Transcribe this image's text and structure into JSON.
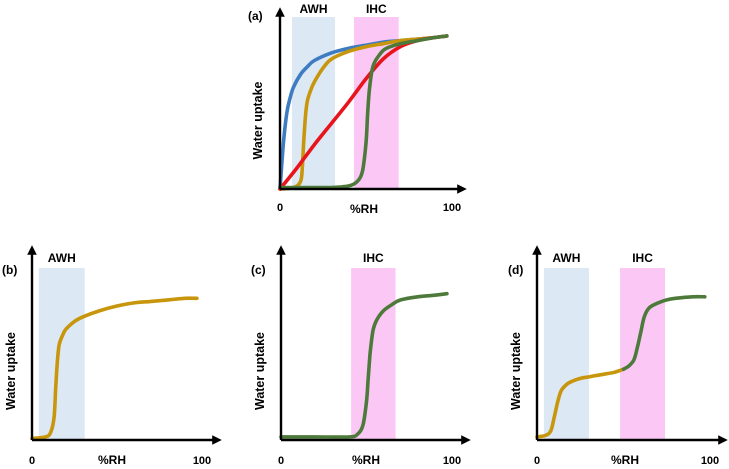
{
  "chart_data": [
    {
      "type": "line",
      "panel_label": "(a)",
      "xlabel": "%RH",
      "ylabel": "Water uptake",
      "xlim": [
        0,
        100
      ],
      "ylim": [
        0,
        1
      ],
      "x_ticks": [
        "0",
        "100"
      ],
      "bands": [
        {
          "label": "AWH",
          "range": [
            7,
            32
          ],
          "color": "#dce8f4"
        },
        {
          "label": "IHC",
          "range": [
            43,
            69
          ],
          "color": "#fbc8f6"
        }
      ],
      "series": [
        {
          "name": "blue",
          "color": "#3e7cc2",
          "x": [
            0,
            2,
            4,
            6,
            8,
            12,
            16,
            20,
            30,
            40,
            50,
            60,
            70,
            80,
            90,
            97
          ],
          "y": [
            0,
            0.3,
            0.5,
            0.6,
            0.67,
            0.75,
            0.8,
            0.84,
            0.89,
            0.92,
            0.94,
            0.96,
            0.97,
            0.98,
            0.99,
            1.0
          ]
        },
        {
          "name": "gold",
          "color": "#c8960c",
          "x": [
            0,
            8,
            12,
            13,
            14,
            15,
            16,
            18,
            20,
            25,
            30,
            40,
            50,
            60,
            70,
            80,
            90,
            97
          ],
          "y": [
            0,
            0.01,
            0.05,
            0.15,
            0.35,
            0.5,
            0.58,
            0.65,
            0.7,
            0.79,
            0.85,
            0.9,
            0.93,
            0.95,
            0.97,
            0.98,
            0.99,
            1.0
          ]
        },
        {
          "name": "red",
          "color": "#e8141c",
          "x": [
            0,
            10,
            20,
            30,
            40,
            50,
            60,
            70,
            80,
            90,
            97
          ],
          "y": [
            0,
            0.14,
            0.29,
            0.43,
            0.57,
            0.72,
            0.85,
            0.93,
            0.97,
            0.99,
            1.0
          ]
        },
        {
          "name": "green",
          "color": "#4d7a3a",
          "x": [
            0,
            15,
            30,
            40,
            45,
            48,
            50,
            51,
            52,
            54,
            58,
            62,
            70,
            80,
            90,
            97
          ],
          "y": [
            0.01,
            0.01,
            0.01,
            0.02,
            0.05,
            0.12,
            0.3,
            0.5,
            0.65,
            0.8,
            0.88,
            0.92,
            0.95,
            0.97,
            0.99,
            1.0
          ]
        }
      ]
    },
    {
      "type": "line",
      "panel_label": "(b)",
      "xlabel": "%RH",
      "ylabel": "Water uptake",
      "xlim": [
        0,
        100
      ],
      "ylim": [
        0,
        1
      ],
      "x_ticks": [
        "0",
        "100"
      ],
      "bands": [
        {
          "label": "AWH",
          "range": [
            4,
            31
          ],
          "color": "#dce8f4"
        }
      ],
      "series": [
        {
          "name": "gold",
          "color": "#c8960c",
          "x": [
            0,
            8,
            11,
            13,
            14,
            15,
            16,
            18,
            20,
            25,
            30,
            40,
            50,
            60,
            70,
            80,
            90,
            97
          ],
          "y": [
            0.01,
            0.02,
            0.05,
            0.15,
            0.35,
            0.52,
            0.62,
            0.68,
            0.72,
            0.77,
            0.8,
            0.84,
            0.87,
            0.89,
            0.9,
            0.91,
            0.92,
            0.92
          ]
        }
      ]
    },
    {
      "type": "line",
      "panel_label": "(c)",
      "xlabel": "%RH",
      "ylabel": "Water uptake",
      "xlim": [
        0,
        100
      ],
      "ylim": [
        0,
        1
      ],
      "x_ticks": [
        "0",
        "100"
      ],
      "bands": [
        {
          "label": "IHC",
          "range": [
            41,
            67
          ],
          "color": "#fbc8f6"
        }
      ],
      "series": [
        {
          "name": "green",
          "color": "#4d7a3a",
          "x": [
            0,
            20,
            40,
            45,
            48,
            50,
            51,
            52,
            53,
            54,
            56,
            60,
            65,
            70,
            80,
            90,
            97
          ],
          "y": [
            0.02,
            0.02,
            0.02,
            0.04,
            0.1,
            0.25,
            0.4,
            0.55,
            0.65,
            0.72,
            0.78,
            0.84,
            0.88,
            0.91,
            0.93,
            0.94,
            0.95
          ]
        }
      ]
    },
    {
      "type": "line",
      "panel_label": "(d)",
      "xlabel": "%RH",
      "ylabel": "Water uptake",
      "xlim": [
        0,
        100
      ],
      "ylim": [
        0,
        1
      ],
      "x_ticks": [
        "0",
        "100"
      ],
      "bands": [
        {
          "label": "AWH",
          "range": [
            4,
            30
          ],
          "color": "#dce8f4"
        },
        {
          "label": "IHC",
          "range": [
            48,
            74
          ],
          "color": "#fbc8f6"
        }
      ],
      "series": [
        {
          "name": "gold",
          "color": "#c8960c",
          "x": [
            0,
            5,
            8,
            10,
            12,
            14,
            17,
            20,
            25,
            30,
            35,
            40,
            45,
            50
          ],
          "y": [
            0.02,
            0.03,
            0.06,
            0.15,
            0.25,
            0.32,
            0.36,
            0.38,
            0.4,
            0.41,
            0.42,
            0.43,
            0.44,
            0.46
          ]
        },
        {
          "name": "green",
          "color": "#4d7a3a",
          "x": [
            50,
            53,
            56,
            58,
            60,
            62,
            65,
            70,
            75,
            80,
            90,
            97
          ],
          "y": [
            0.46,
            0.48,
            0.52,
            0.6,
            0.7,
            0.8,
            0.86,
            0.89,
            0.91,
            0.92,
            0.93,
            0.93
          ]
        }
      ]
    }
  ]
}
